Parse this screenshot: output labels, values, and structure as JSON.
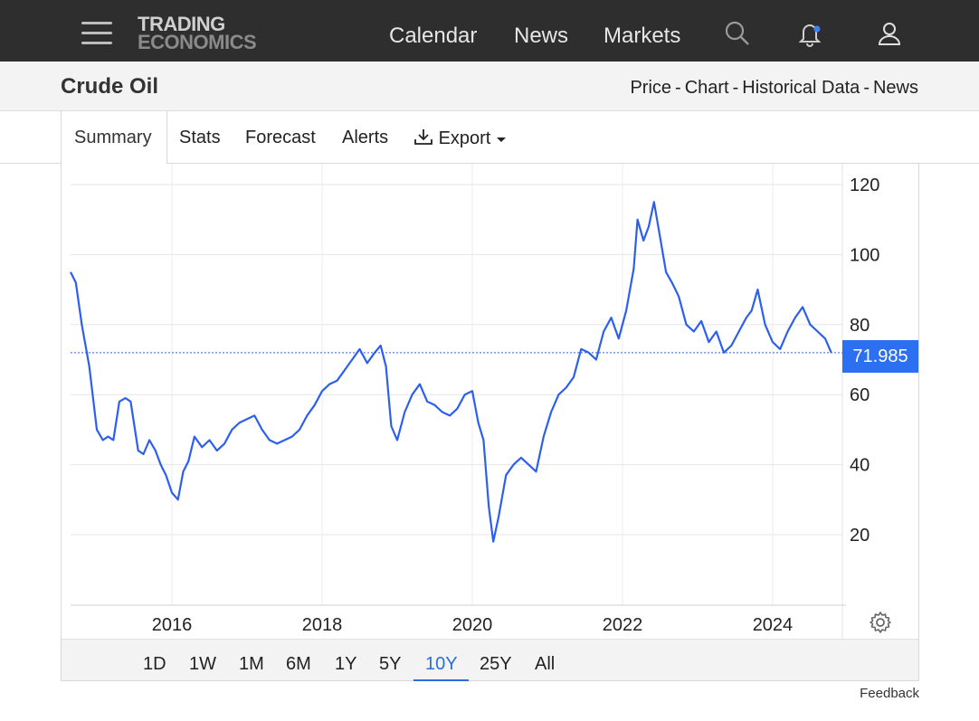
{
  "header": {
    "logo_line1": "TRADING",
    "logo_line2": "ECONOMICS",
    "nav": [
      "Calendar",
      "News",
      "Markets"
    ],
    "icons": [
      "menu-icon",
      "search-icon",
      "bell-icon",
      "user-icon"
    ]
  },
  "subheader": {
    "title": "Crude Oil",
    "links": [
      "Price",
      "Chart",
      "Historical Data",
      "News"
    ],
    "separator": "-"
  },
  "tabs": {
    "items": [
      "Summary",
      "Stats",
      "Forecast",
      "Alerts"
    ],
    "export_label": "Export",
    "active": "Summary"
  },
  "chart": {
    "price_label": "71.985",
    "line_color": "#2c5ff0"
  },
  "ranges": {
    "items": [
      "1D",
      "1W",
      "1M",
      "6M",
      "1Y",
      "5Y",
      "10Y",
      "25Y",
      "All"
    ],
    "active": "10Y"
  },
  "feedback_label": "Feedback",
  "chart_data": {
    "type": "line",
    "title": "",
    "xlabel": "",
    "ylabel": "",
    "ylim": [
      0,
      120
    ],
    "yticks": [
      20,
      40,
      60,
      80,
      100,
      120
    ],
    "xticks": [
      2016,
      2018,
      2020,
      2022,
      2024
    ],
    "xlim": [
      2014.65,
      2024.82
    ],
    "grid": true,
    "last_value": 71.985,
    "series": [
      {
        "x": [
          2014.65,
          2014.72,
          2014.8,
          2014.9,
          2015.0,
          2015.08,
          2015.15,
          2015.22,
          2015.3,
          2015.38,
          2015.45,
          2015.55,
          2015.62,
          2015.7,
          2015.78,
          2015.85,
          2015.92,
          2016.0,
          2016.08,
          2016.15,
          2016.22,
          2016.3,
          2016.4,
          2016.5,
          2016.6,
          2016.7,
          2016.8,
          2016.9,
          2017.0,
          2017.1,
          2017.2,
          2017.3,
          2017.4,
          2017.5,
          2017.6,
          2017.7,
          2017.8,
          2017.9,
          2018.0,
          2018.1,
          2018.2,
          2018.3,
          2018.4,
          2018.5,
          2018.6,
          2018.7,
          2018.78,
          2018.85,
          2018.92,
          2019.0,
          2019.1,
          2019.2,
          2019.3,
          2019.4,
          2019.5,
          2019.6,
          2019.7,
          2019.8,
          2019.9,
          2020.0,
          2020.08,
          2020.15,
          2020.22,
          2020.28,
          2020.35,
          2020.45,
          2020.55,
          2020.65,
          2020.75,
          2020.85,
          2020.95,
          2021.05,
          2021.15,
          2021.25,
          2021.35,
          2021.45,
          2021.55,
          2021.65,
          2021.75,
          2021.85,
          2021.95,
          2022.05,
          2022.15,
          2022.2,
          2022.28,
          2022.35,
          2022.42,
          2022.5,
          2022.58,
          2022.66,
          2022.75,
          2022.85,
          2022.95,
          2023.05,
          2023.15,
          2023.25,
          2023.35,
          2023.45,
          2023.55,
          2023.65,
          2023.72,
          2023.8,
          2023.9,
          2024.0,
          2024.1,
          2024.2,
          2024.3,
          2024.4,
          2024.5,
          2024.6,
          2024.7,
          2024.78
        ],
        "y": [
          95,
          92,
          80,
          68,
          50,
          47,
          48,
          47,
          58,
          59,
          58,
          44,
          43,
          47,
          44,
          40,
          37,
          32,
          30,
          38,
          41,
          48,
          45,
          47,
          44,
          46,
          50,
          52,
          53,
          54,
          50,
          47,
          46,
          47,
          48,
          50,
          54,
          57,
          61,
          63,
          64,
          67,
          70,
          73,
          69,
          72,
          74,
          68,
          51,
          47,
          55,
          60,
          63,
          58,
          57,
          55,
          54,
          56,
          60,
          61,
          52,
          47,
          28,
          18,
          25,
          37,
          40,
          42,
          40,
          38,
          48,
          55,
          60,
          62,
          65,
          73,
          72,
          70,
          78,
          82,
          76,
          84,
          96,
          110,
          104,
          108,
          115,
          105,
          95,
          92,
          88,
          80,
          78,
          81,
          75,
          78,
          72,
          74,
          78,
          82,
          84,
          90,
          80,
          75,
          73,
          78,
          82,
          85,
          80,
          78,
          76,
          72
        ]
      }
    ]
  }
}
